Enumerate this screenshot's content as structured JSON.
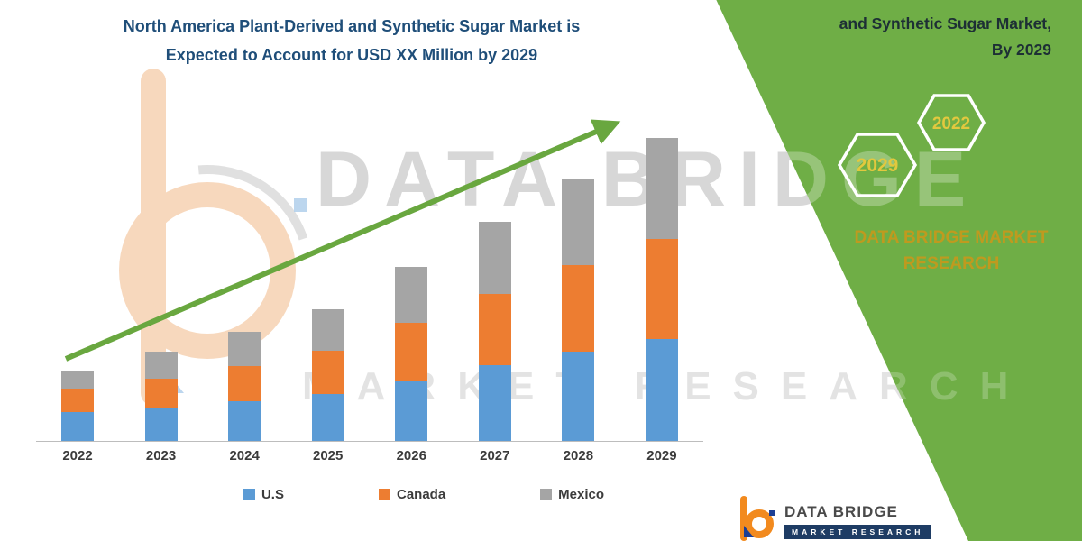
{
  "title": {
    "line1": "North America Plant-Derived and Synthetic Sugar Market is",
    "line2": "Expected to Account for USD XX Million by 2029"
  },
  "watermark": {
    "line1": "DATA BRIDGE",
    "line2": "MARKET RESEARCH"
  },
  "side_panel": {
    "bg_color": "#6fae46",
    "heading_line1": "and Synthetic Sugar Market,",
    "heading_line2": "By 2029",
    "hexagons": [
      {
        "year": "2029"
      },
      {
        "year": "2022"
      }
    ],
    "brand_line1": "DATA BRIDGE MARKET",
    "brand_line2": "RESEARCH",
    "year_color": "#e2c83e"
  },
  "footer_logo": {
    "brand": "DATA BRIDGE",
    "sub": "MARKET RESEARCH"
  },
  "chart_data": {
    "type": "bar",
    "stacked": true,
    "title": "North America Plant-Derived and Synthetic Sugar Market is Expected to Account for USD XX Million by 2029",
    "categories": [
      "2022",
      "2023",
      "2024",
      "2025",
      "2026",
      "2027",
      "2028",
      "2029"
    ],
    "series": [
      {
        "name": "U.S",
        "color": "#5B9BD5",
        "values": [
          32,
          37,
          45,
          53,
          68,
          85,
          100,
          115
        ]
      },
      {
        "name": "Canada",
        "color": "#ED7D31",
        "values": [
          26,
          33,
          40,
          49,
          65,
          80,
          97,
          113
        ]
      },
      {
        "name": "Mexico",
        "color": "#A5A5A5",
        "values": [
          19,
          30,
          39,
          47,
          63,
          81,
          96,
          114
        ]
      }
    ],
    "xlabel": "",
    "ylabel": "",
    "ylim": [
      0,
      350
    ],
    "y_axis_labels_visible": false,
    "grid": false,
    "legend_position": "bottom",
    "trend_arrow": {
      "show": true,
      "direction": "up-right",
      "color": "#69a73f"
    }
  }
}
